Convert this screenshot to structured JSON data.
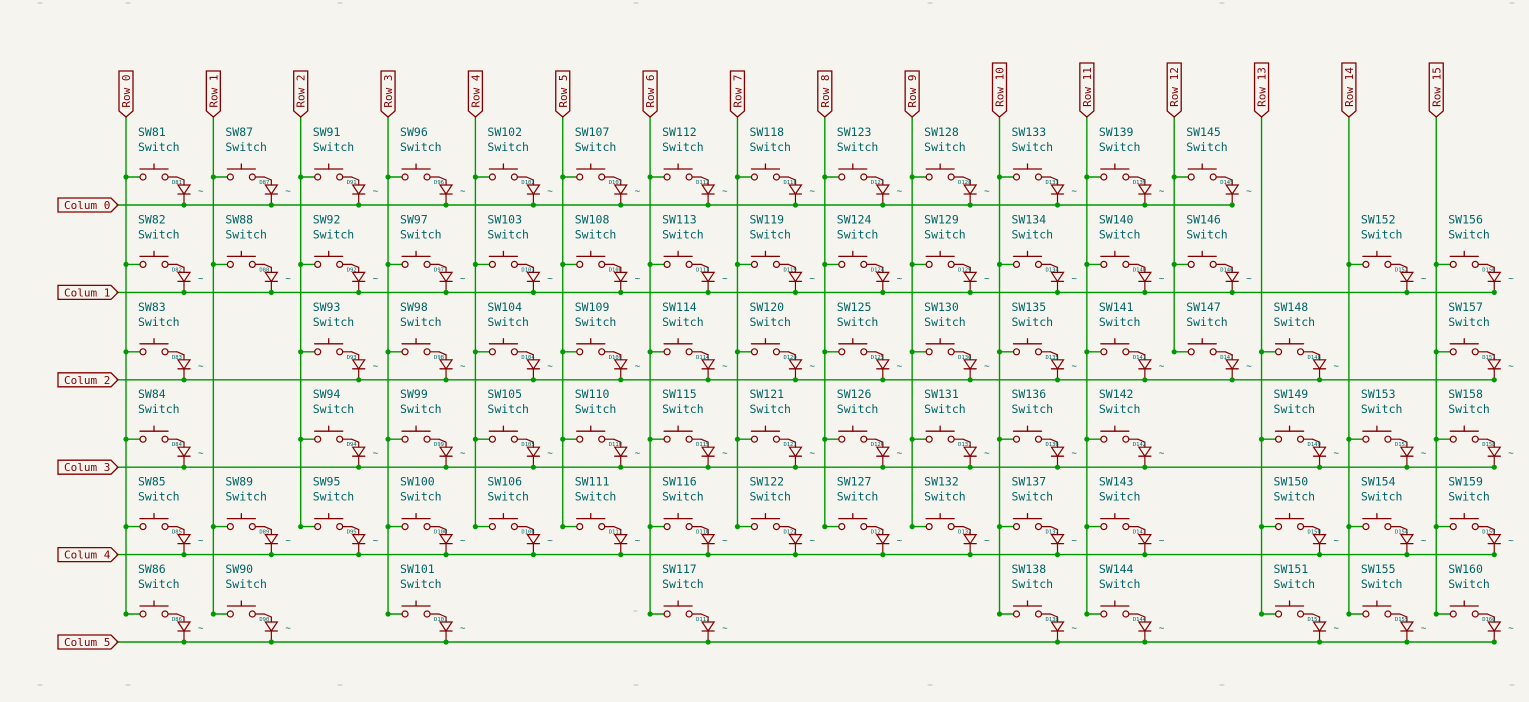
{
  "colors": {
    "background": "#f5f4ef",
    "wire": "#009900",
    "symbol": "#840000",
    "reference_text": "#006464",
    "junction": "#009900"
  },
  "rows": [
    "Row 0",
    "Row 1",
    "Row 2",
    "Row 3",
    "Row 4",
    "Row 5",
    "Row 6",
    "Row 7",
    "Row 8",
    "Row 9",
    "Row 10",
    "Row 11",
    "Row 12",
    "Row 13",
    "Row 14",
    "Row 15"
  ],
  "columns": [
    "Colum 0",
    "Colum 1",
    "Colum 2",
    "Colum 3",
    "Colum 4",
    "Colum 5"
  ],
  "switch_value": "Switch",
  "diode_value_mark": "~",
  "cells": [
    [
      "SW81",
      "SW87",
      "SW91",
      "SW96",
      "SW102",
      "SW107",
      "SW112",
      "SW118",
      "SW123",
      "SW128",
      "SW133",
      "SW139",
      "SW145",
      "",
      "",
      ""
    ],
    [
      "SW82",
      "SW88",
      "SW92",
      "SW97",
      "SW103",
      "SW108",
      "SW113",
      "SW119",
      "SW124",
      "SW129",
      "SW134",
      "SW140",
      "SW146",
      "",
      "SW152",
      "SW156"
    ],
    [
      "SW83",
      "",
      "SW93",
      "SW98",
      "SW104",
      "SW109",
      "SW114",
      "SW120",
      "SW125",
      "SW130",
      "SW135",
      "SW141",
      "SW147",
      "SW148",
      "",
      "SW157"
    ],
    [
      "SW84",
      "",
      "SW94",
      "SW99",
      "SW105",
      "SW110",
      "SW115",
      "SW121",
      "SW126",
      "SW131",
      "SW136",
      "SW142",
      "",
      "SW149",
      "SW153",
      "SW158"
    ],
    [
      "SW85",
      "SW89",
      "SW95",
      "SW100",
      "SW106",
      "SW111",
      "SW116",
      "SW122",
      "SW127",
      "SW132",
      "SW137",
      "SW143",
      "",
      "SW150",
      "SW154",
      "SW159"
    ],
    [
      "SW86",
      "SW90",
      "",
      "SW101",
      "",
      "",
      "SW117",
      "",
      "",
      "",
      "SW138",
      "SW144",
      "",
      "SW151",
      "SW155",
      "SW160"
    ]
  ],
  "diodes": [
    [
      "D81",
      "D87",
      "D91",
      "D96",
      "D102",
      "D107",
      "D112",
      "D118",
      "D123",
      "D128",
      "D133",
      "D139",
      "D145",
      "",
      "",
      ""
    ],
    [
      "D82",
      "D88",
      "D92",
      "D97",
      "D103",
      "D108",
      "D113",
      "D119",
      "D124",
      "D129",
      "D134",
      "D140",
      "D146",
      "",
      "D152",
      "D156"
    ],
    [
      "D83",
      "",
      "D93",
      "D98",
      "D104",
      "D109",
      "D114",
      "D120",
      "D125",
      "D130",
      "D135",
      "D141",
      "D147",
      "D148",
      "",
      "D157"
    ],
    [
      "D84",
      "",
      "D94",
      "D99",
      "D105",
      "D110",
      "D115",
      "D121",
      "D126",
      "D131",
      "D136",
      "D142",
      "",
      "D149",
      "D153",
      "D158"
    ],
    [
      "D85",
      "D89",
      "D95",
      "D100",
      "D106",
      "D111",
      "D116",
      "D122",
      "D127",
      "D132",
      "D137",
      "D143",
      "",
      "D150",
      "D154",
      "D159"
    ],
    [
      "D86",
      "D90",
      "",
      "D101",
      "",
      "",
      "D117",
      "",
      "",
      "",
      "D138",
      "D144",
      "",
      "D151",
      "D155",
      "D160"
    ]
  ]
}
